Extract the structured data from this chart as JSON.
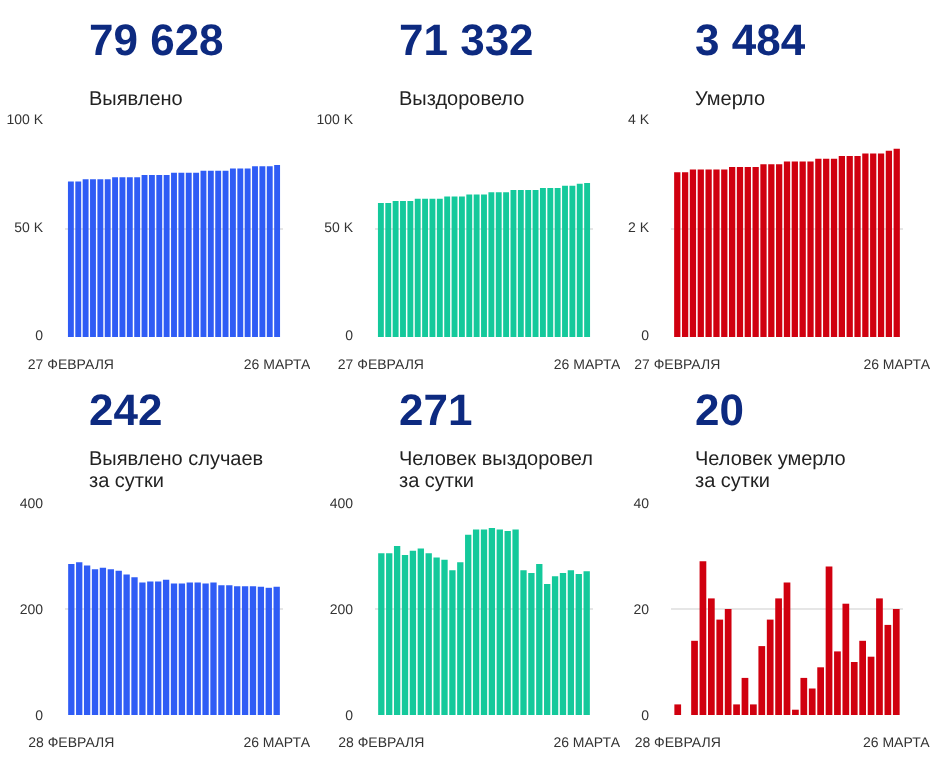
{
  "chart_data": [
    {
      "type": "bar",
      "title": "79 628",
      "subtitle": "Выявлено",
      "color": "#2f5cf5",
      "grid": "y",
      "categories": [
        "27 ФЕВРАЛЯ",
        null,
        null,
        null,
        null,
        null,
        null,
        null,
        null,
        null,
        null,
        null,
        null,
        null,
        null,
        null,
        null,
        null,
        null,
        null,
        null,
        null,
        null,
        null,
        null,
        null,
        null,
        null,
        "26 МАРТА"
      ],
      "values": [
        72000,
        72000,
        73000,
        73000,
        73000,
        73000,
        74000,
        74000,
        74000,
        74000,
        75000,
        75000,
        75000,
        75000,
        76000,
        76000,
        76000,
        76000,
        77000,
        77000,
        77000,
        77000,
        78000,
        78000,
        78000,
        79000,
        79000,
        79000,
        79628
      ],
      "ylim": [
        0,
        100000
      ],
      "yticks": [
        0,
        {
          "value": 50000,
          "label": "50 K"
        },
        {
          "value": 100000,
          "label": "100 K"
        }
      ]
    },
    {
      "type": "bar",
      "title": "71 332",
      "subtitle": "Выздоровело",
      "color": "#14c99b",
      "grid": "y",
      "categories": [
        "27 ФЕВРАЛЯ",
        null,
        null,
        null,
        null,
        null,
        null,
        null,
        null,
        null,
        null,
        null,
        null,
        null,
        null,
        null,
        null,
        null,
        null,
        null,
        null,
        null,
        null,
        null,
        null,
        null,
        null,
        null,
        "26 МАРТА"
      ],
      "values": [
        62000,
        62000,
        63000,
        63000,
        63000,
        64000,
        64000,
        64000,
        64000,
        65000,
        65000,
        65000,
        66000,
        66000,
        66000,
        67000,
        67000,
        67000,
        68000,
        68000,
        68000,
        68000,
        69000,
        69000,
        69000,
        70000,
        70000,
        71000,
        71332
      ],
      "ylim": [
        0,
        100000
      ],
      "yticks": [
        0,
        {
          "value": 50000,
          "label": "50 K"
        },
        {
          "value": 100000,
          "label": "100 K"
        }
      ]
    },
    {
      "type": "bar",
      "title": "3 484",
      "subtitle": "Умерло",
      "color": "#d0000f",
      "grid": "y",
      "categories": [
        "27 ФЕВРАЛЯ",
        null,
        null,
        null,
        null,
        null,
        null,
        null,
        null,
        null,
        null,
        null,
        null,
        null,
        null,
        null,
        null,
        null,
        null,
        null,
        null,
        null,
        null,
        null,
        null,
        null,
        null,
        null,
        "26 МАРТА"
      ],
      "values": [
        3050,
        3050,
        3100,
        3100,
        3100,
        3100,
        3100,
        3150,
        3150,
        3150,
        3150,
        3200,
        3200,
        3200,
        3250,
        3250,
        3250,
        3250,
        3300,
        3300,
        3300,
        3350,
        3350,
        3350,
        3400,
        3400,
        3400,
        3450,
        3484
      ],
      "ylim": [
        0,
        4000
      ],
      "yticks": [
        0,
        {
          "value": 2000,
          "label": "2 K"
        },
        {
          "value": 4000,
          "label": "4 K"
        }
      ]
    },
    {
      "type": "bar",
      "title": "242",
      "subtitle": "Выявлено случаев\nза сутки",
      "color": "#2f5cf5",
      "grid": "y",
      "categories": [
        "28 ФЕВРАЛЯ",
        null,
        null,
        null,
        null,
        null,
        null,
        null,
        null,
        null,
        null,
        null,
        null,
        null,
        null,
        null,
        null,
        null,
        null,
        null,
        null,
        null,
        null,
        null,
        null,
        null,
        "26 МАРТА"
      ],
      "values": [
        285,
        288,
        282,
        275,
        278,
        275,
        272,
        265,
        260,
        250,
        252,
        252,
        255,
        248,
        248,
        250,
        250,
        248,
        250,
        245,
        245,
        243,
        243,
        243,
        242,
        240,
        242
      ],
      "ylim": [
        0,
        400
      ],
      "yticks": [
        0,
        200,
        400
      ]
    },
    {
      "type": "bar",
      "title": "271",
      "subtitle": "Человек выздоровел\nза сутки",
      "color": "#14c99b",
      "grid": "y",
      "categories": [
        "28 ФЕВРАЛЯ",
        null,
        null,
        null,
        null,
        null,
        null,
        null,
        null,
        null,
        null,
        null,
        null,
        null,
        null,
        null,
        null,
        null,
        null,
        null,
        null,
        null,
        null,
        null,
        null,
        null,
        "26 МАРТА"
      ],
      "values": [
        305,
        305,
        319,
        302,
        310,
        314,
        305,
        297,
        293,
        273,
        288,
        340,
        350,
        350,
        353,
        350,
        347,
        350,
        273,
        268,
        285,
        247,
        262,
        268,
        273,
        266,
        271
      ],
      "ylim": [
        0,
        400
      ],
      "yticks": [
        0,
        200,
        400
      ]
    },
    {
      "type": "bar",
      "title": "20",
      "subtitle": "Человек умерло\nза сутки",
      "color": "#d0000f",
      "grid": "y",
      "categories": [
        "28 ФЕВРАЛЯ",
        null,
        null,
        null,
        null,
        null,
        null,
        null,
        null,
        null,
        null,
        null,
        null,
        null,
        null,
        null,
        null,
        null,
        null,
        null,
        null,
        null,
        null,
        null,
        null,
        null,
        "26 МАРТА"
      ],
      "values": [
        2,
        0,
        14,
        29,
        22,
        18,
        20,
        2,
        7,
        2,
        13,
        18,
        22,
        25,
        1,
        7,
        5,
        9,
        28,
        12,
        21,
        10,
        14,
        11,
        22,
        17,
        20
      ],
      "ylim": [
        0,
        40
      ],
      "yticks": [
        0,
        20,
        40
      ]
    }
  ]
}
